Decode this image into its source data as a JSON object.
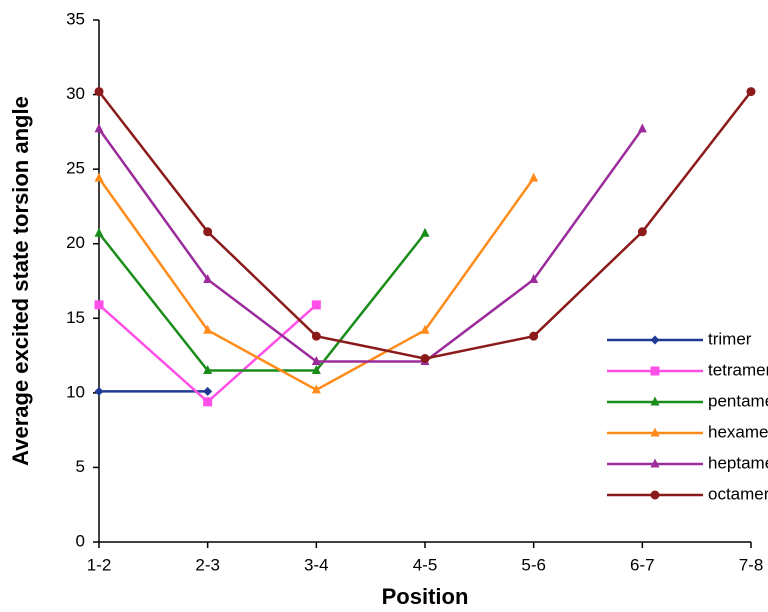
{
  "chart_data": {
    "type": "line",
    "x_label": "Position",
    "y_label": "Average excited state torsion angle",
    "categories": [
      "1-2",
      "2-3",
      "3-4",
      "4-5",
      "5-6",
      "6-7",
      "7-8"
    ],
    "ylim": [
      0,
      35
    ],
    "yticks": [
      0,
      5,
      10,
      15,
      20,
      25,
      30,
      35
    ],
    "grid": false,
    "legend": "right",
    "series": [
      {
        "name": "trimer",
        "color": "#1f3a93",
        "marker": "diamond",
        "values": [
          10.1,
          10.1,
          null,
          null,
          null,
          null,
          null
        ]
      },
      {
        "name": "tetramer",
        "color": "#ff4fe8",
        "marker": "square",
        "values": [
          15.9,
          9.4,
          15.9,
          null,
          null,
          null,
          null
        ]
      },
      {
        "name": "pentamer",
        "color": "#1a8c1a",
        "marker": "triangle",
        "values": [
          20.7,
          11.5,
          11.5,
          20.7,
          null,
          null,
          null
        ]
      },
      {
        "name": "hexamer",
        "color": "#ff8c1a",
        "marker": "triangle",
        "values": [
          24.4,
          14.2,
          10.2,
          14.2,
          24.4,
          null,
          null
        ]
      },
      {
        "name": "heptamer",
        "color": "#9b2c9b",
        "marker": "triangle",
        "values": [
          27.7,
          17.6,
          12.1,
          12.1,
          17.6,
          27.7,
          null
        ]
      },
      {
        "name": "octamer",
        "color": "#8b1a1a",
        "marker": "circle",
        "values": [
          30.2,
          20.8,
          13.8,
          12.3,
          13.8,
          20.8,
          30.2
        ]
      }
    ]
  }
}
